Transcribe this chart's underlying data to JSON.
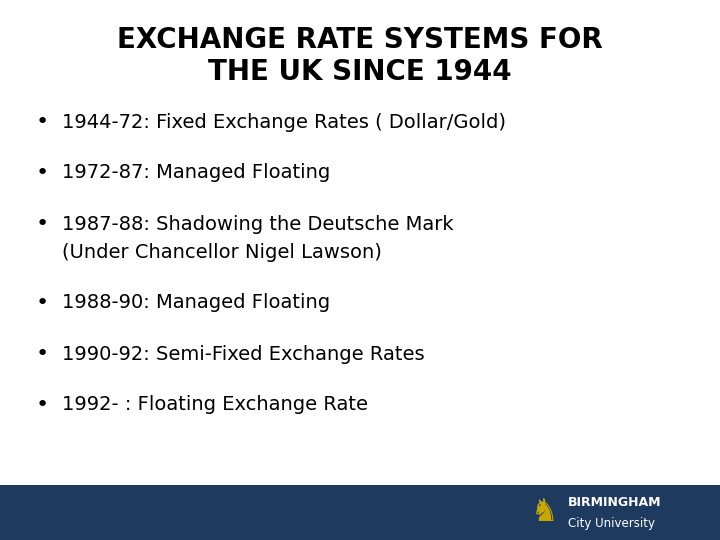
{
  "title_line1": "EXCHANGE RATE SYSTEMS FOR",
  "title_line2": "THE UK SINCE 1944",
  "bullet_items": [
    "1944-72: Fixed Exchange Rates ( Dollar/Gold)",
    "1972-87: Managed Floating",
    "1987-88: Shadowing the Deutsche Mark",
    "(Under Chancellor Nigel Lawson)",
    "1988-90: Managed Floating",
    "1990-92: Semi-Fixed Exchange Rates",
    "1992- : Floating Exchange Rate"
  ],
  "bullet_has_dot": [
    true,
    true,
    true,
    false,
    true,
    true,
    true
  ],
  "bg_color": "#ffffff",
  "title_color": "#000000",
  "text_color": "#000000",
  "footer_bar_color": "#1e3a5f",
  "logo_text_color": "#ffffff",
  "logo_lion_color": "#c8a800",
  "university_name_line1": "BIRMINGHAM",
  "university_name_line2": "City University",
  "title_fontsize": 20,
  "bullet_fontsize": 14
}
